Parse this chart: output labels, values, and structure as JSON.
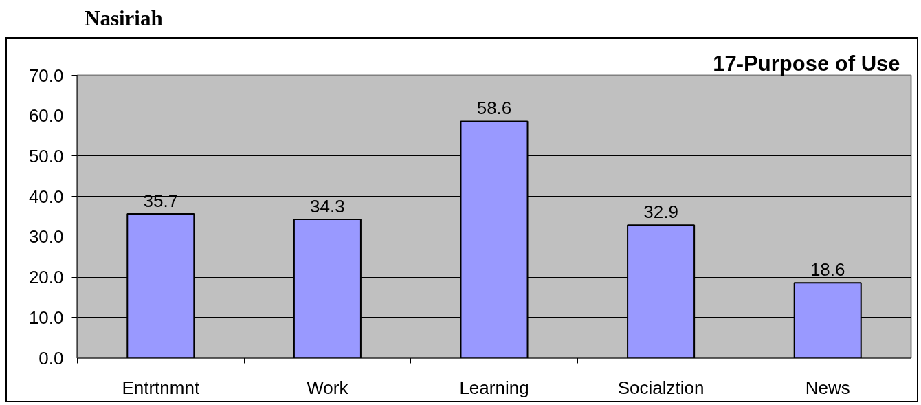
{
  "chart_data": {
    "type": "bar",
    "title": "Nasiriah",
    "subtitle": "17-Purpose of Use",
    "categories": [
      "Entrtnmnt",
      "Work",
      "Learning",
      "Socialztion",
      "News"
    ],
    "values": [
      35.7,
      34.3,
      58.6,
      32.9,
      18.6
    ],
    "color": "#9999ff",
    "ylim": [
      0,
      70
    ],
    "yticks": [
      {
        "value": 0,
        "label": "0.0"
      },
      {
        "value": 10,
        "label": "10.0"
      },
      {
        "value": 20,
        "label": "20.0"
      },
      {
        "value": 30,
        "label": "30.0"
      },
      {
        "value": 40,
        "label": "40.0"
      },
      {
        "value": 50,
        "label": "50.0"
      },
      {
        "value": 60,
        "label": "60.0"
      },
      {
        "value": 70,
        "label": "70.0"
      }
    ],
    "grid": "y",
    "data_labels": true
  }
}
